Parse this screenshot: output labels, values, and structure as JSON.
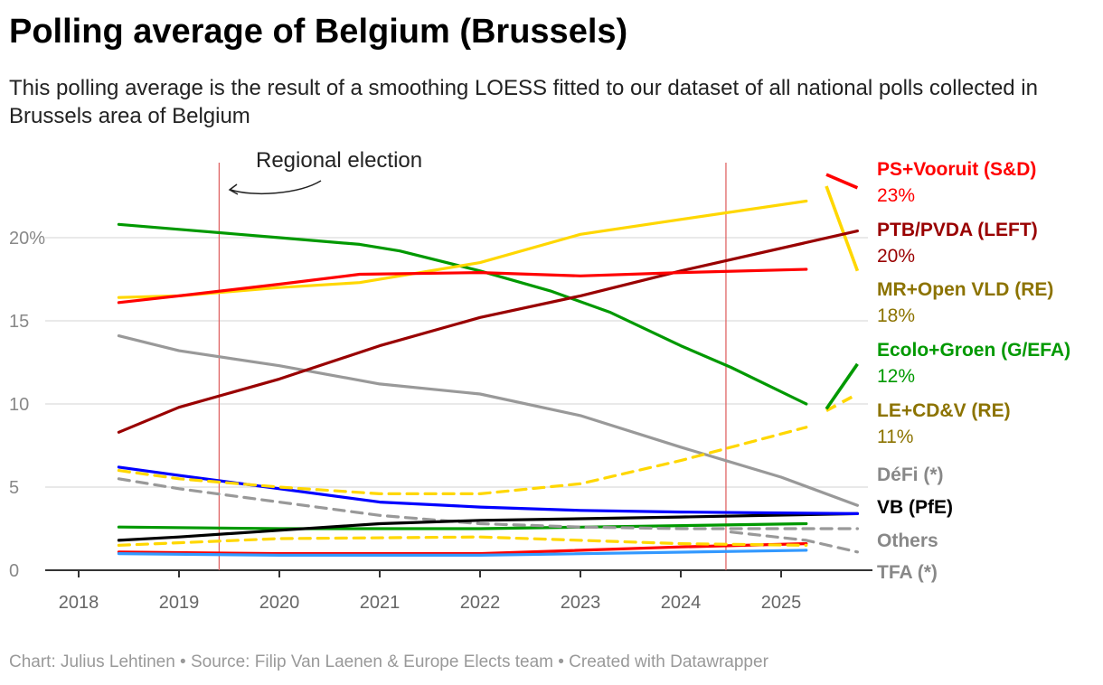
{
  "title": "Polling average of Belgium (Brussels)",
  "subtitle": "This polling average is the result of a smoothing LOESS fitted to our dataset of all national polls collected in Brussels area of Belgium",
  "footer": "Chart: Julius Lehtinen • Source: Filip Van Laenen & Europe Elects team • Created with Datawrapper",
  "chart_data": {
    "type": "line",
    "title": "Polling average of Belgium (Brussels)",
    "xlabel": "",
    "ylabel": "",
    "xlim": [
      2017.6,
      2025.9
    ],
    "ylim": [
      0,
      24
    ],
    "x_ticks": [
      "2018",
      "2019",
      "2020",
      "2021",
      "2022",
      "2023",
      "2024",
      "2025"
    ],
    "y_ticks": [
      {
        "v": 0,
        "label": "0"
      },
      {
        "v": 5,
        "label": "5"
      },
      {
        "v": 10,
        "label": "10"
      },
      {
        "v": 15,
        "label": "15"
      },
      {
        "v": 20,
        "label": "20%"
      }
    ],
    "annotations": [
      {
        "text": "Regional election",
        "x": 2019.4
      },
      {
        "text": "",
        "x": 2024.45
      }
    ],
    "series": [
      {
        "name": "PS+Vooruit (S&D)",
        "value_label": "23%",
        "color": "#ff0000",
        "label_color": "#ff0000",
        "dash": false,
        "points": [
          [
            2018.4,
            16.1
          ],
          [
            2019,
            16.5
          ],
          [
            2020,
            17.2
          ],
          [
            2020.8,
            17.8
          ],
          [
            2022,
            17.9
          ],
          [
            2023,
            17.7
          ],
          [
            2024,
            17.9
          ],
          [
            2025.25,
            18.1
          ]
        ],
        "tail": [
          [
            2025.45,
            23.8
          ],
          [
            2025.76,
            23.0
          ]
        ]
      },
      {
        "name": "PTB/PVDA (LEFT)",
        "value_label": "20%",
        "color": "#990000",
        "label_color": "#990000",
        "dash": false,
        "points": [
          [
            2018.4,
            8.3
          ],
          [
            2019,
            9.8
          ],
          [
            2020,
            11.5
          ],
          [
            2021,
            13.5
          ],
          [
            2022,
            15.2
          ],
          [
            2023,
            16.5
          ],
          [
            2024,
            18
          ],
          [
            2025.76,
            20.4
          ]
        ]
      },
      {
        "name": "MR+Open VLD (RE)",
        "value_label": "18%",
        "color": "#ffd700",
        "label_color": "#8c7300",
        "dash": false,
        "points": [
          [
            2018.4,
            16.4
          ],
          [
            2019,
            16.5
          ],
          [
            2020,
            17
          ],
          [
            2020.8,
            17.3
          ],
          [
            2021.5,
            18
          ],
          [
            2022,
            18.5
          ],
          [
            2023,
            20.2
          ],
          [
            2024,
            21.1
          ],
          [
            2025.25,
            22.2
          ]
        ],
        "tail": [
          [
            2025.45,
            23.1
          ],
          [
            2025.76,
            18.0
          ]
        ]
      },
      {
        "name": "Ecolo+Groen (G/EFA)",
        "value_label": "12%",
        "color": "#009900",
        "label_color": "#009900",
        "dash": false,
        "points": [
          [
            2018.4,
            20.8
          ],
          [
            2019,
            20.5
          ],
          [
            2020,
            20
          ],
          [
            2020.8,
            19.6
          ],
          [
            2021.2,
            19.2
          ],
          [
            2022,
            18
          ],
          [
            2022.7,
            16.8
          ],
          [
            2023.3,
            15.5
          ],
          [
            2024,
            13.5
          ],
          [
            2024.5,
            12.2
          ],
          [
            2025.25,
            10
          ]
        ],
        "tail": [
          [
            2025.45,
            9.7
          ],
          [
            2025.76,
            12.4
          ]
        ]
      },
      {
        "name": "LE+CD&V (RE)",
        "value_label": "11%",
        "color": "#ffd700",
        "label_color": "#8c7300",
        "dash": true,
        "points": [
          [
            2018.4,
            6.0
          ],
          [
            2019,
            5.5
          ],
          [
            2020,
            5.0
          ],
          [
            2021,
            4.6
          ],
          [
            2022,
            4.6
          ],
          [
            2023,
            5.2
          ],
          [
            2024,
            6.6
          ],
          [
            2025.25,
            8.6
          ]
        ],
        "tail": [
          [
            2025.45,
            9.6
          ],
          [
            2025.76,
            10.6
          ]
        ]
      },
      {
        "name": "DéFi (*)",
        "value_label": "",
        "color": "#999999",
        "label_color": "#888888",
        "dash": false,
        "points": [
          [
            2018.4,
            14.1
          ],
          [
            2019,
            13.2
          ],
          [
            2020,
            12.3
          ],
          [
            2021,
            11.2
          ],
          [
            2022,
            10.6
          ],
          [
            2023,
            9.3
          ],
          [
            2024,
            7.4
          ],
          [
            2025,
            5.6
          ],
          [
            2025.76,
            3.9
          ]
        ]
      },
      {
        "name": "",
        "value_label": "",
        "color": "#0000ff",
        "label_color": "#0000ff",
        "dash": false,
        "points": [
          [
            2018.4,
            6.2
          ],
          [
            2019,
            5.7
          ],
          [
            2020,
            4.9
          ],
          [
            2021,
            4.1
          ],
          [
            2022,
            3.8
          ],
          [
            2023,
            3.6
          ],
          [
            2024,
            3.5
          ],
          [
            2025.76,
            3.4
          ]
        ]
      },
      {
        "name": "VB (PfE)",
        "value_label": "",
        "color": "#000000",
        "label_color": "#000000",
        "dash": false,
        "points": [
          [
            2018.4,
            1.8
          ],
          [
            2019,
            2.0
          ],
          [
            2020,
            2.4
          ],
          [
            2021,
            2.8
          ],
          [
            2022,
            3.0
          ],
          [
            2023,
            3.1
          ],
          [
            2024,
            3.2
          ],
          [
            2025.76,
            3.4
          ]
        ]
      },
      {
        "name": "Others",
        "value_label": "",
        "color": "#999999",
        "label_color": "#888888",
        "dash": true,
        "points": [
          [
            2018.4,
            5.5
          ],
          [
            2019,
            4.9
          ],
          [
            2020,
            4.1
          ],
          [
            2021,
            3.3
          ],
          [
            2022,
            2.8
          ],
          [
            2023,
            2.6
          ],
          [
            2024,
            2.5
          ],
          [
            2025.76,
            2.5
          ]
        ]
      },
      {
        "name": "TFA (*)",
        "value_label": "",
        "color": "#999999",
        "label_color": "#888888",
        "dash": true,
        "points": [
          [
            2024.5,
            2.3
          ],
          [
            2025.25,
            1.8
          ],
          [
            2025.76,
            1.1
          ]
        ]
      },
      {
        "name": "",
        "value_label": "",
        "color": "#009900",
        "label_color": "#009900",
        "dash": false,
        "points": [
          [
            2018.4,
            2.6
          ],
          [
            2020,
            2.5
          ],
          [
            2022,
            2.5
          ],
          [
            2025.25,
            2.8
          ]
        ]
      },
      {
        "name": "",
        "value_label": "",
        "color": "#ffd700",
        "label_color": "#ffd700",
        "dash": true,
        "points": [
          [
            2018.4,
            1.5
          ],
          [
            2020,
            1.9
          ],
          [
            2022,
            2.0
          ],
          [
            2024,
            1.6
          ],
          [
            2025.25,
            1.5
          ]
        ]
      },
      {
        "name": "",
        "value_label": "",
        "color": "#3399ff",
        "label_color": "#3399ff",
        "dash": false,
        "points": [
          [
            2018.4,
            1.0
          ],
          [
            2020,
            0.9
          ],
          [
            2022,
            0.9
          ],
          [
            2025.25,
            1.2
          ]
        ]
      },
      {
        "name": "",
        "value_label": "",
        "color": "#ff0000",
        "label_color": "#ff0000",
        "dash": false,
        "points": [
          [
            2018.4,
            1.1
          ],
          [
            2020,
            1.0
          ],
          [
            2022,
            1.0
          ],
          [
            2024,
            1.4
          ],
          [
            2025.25,
            1.6
          ]
        ]
      }
    ]
  }
}
